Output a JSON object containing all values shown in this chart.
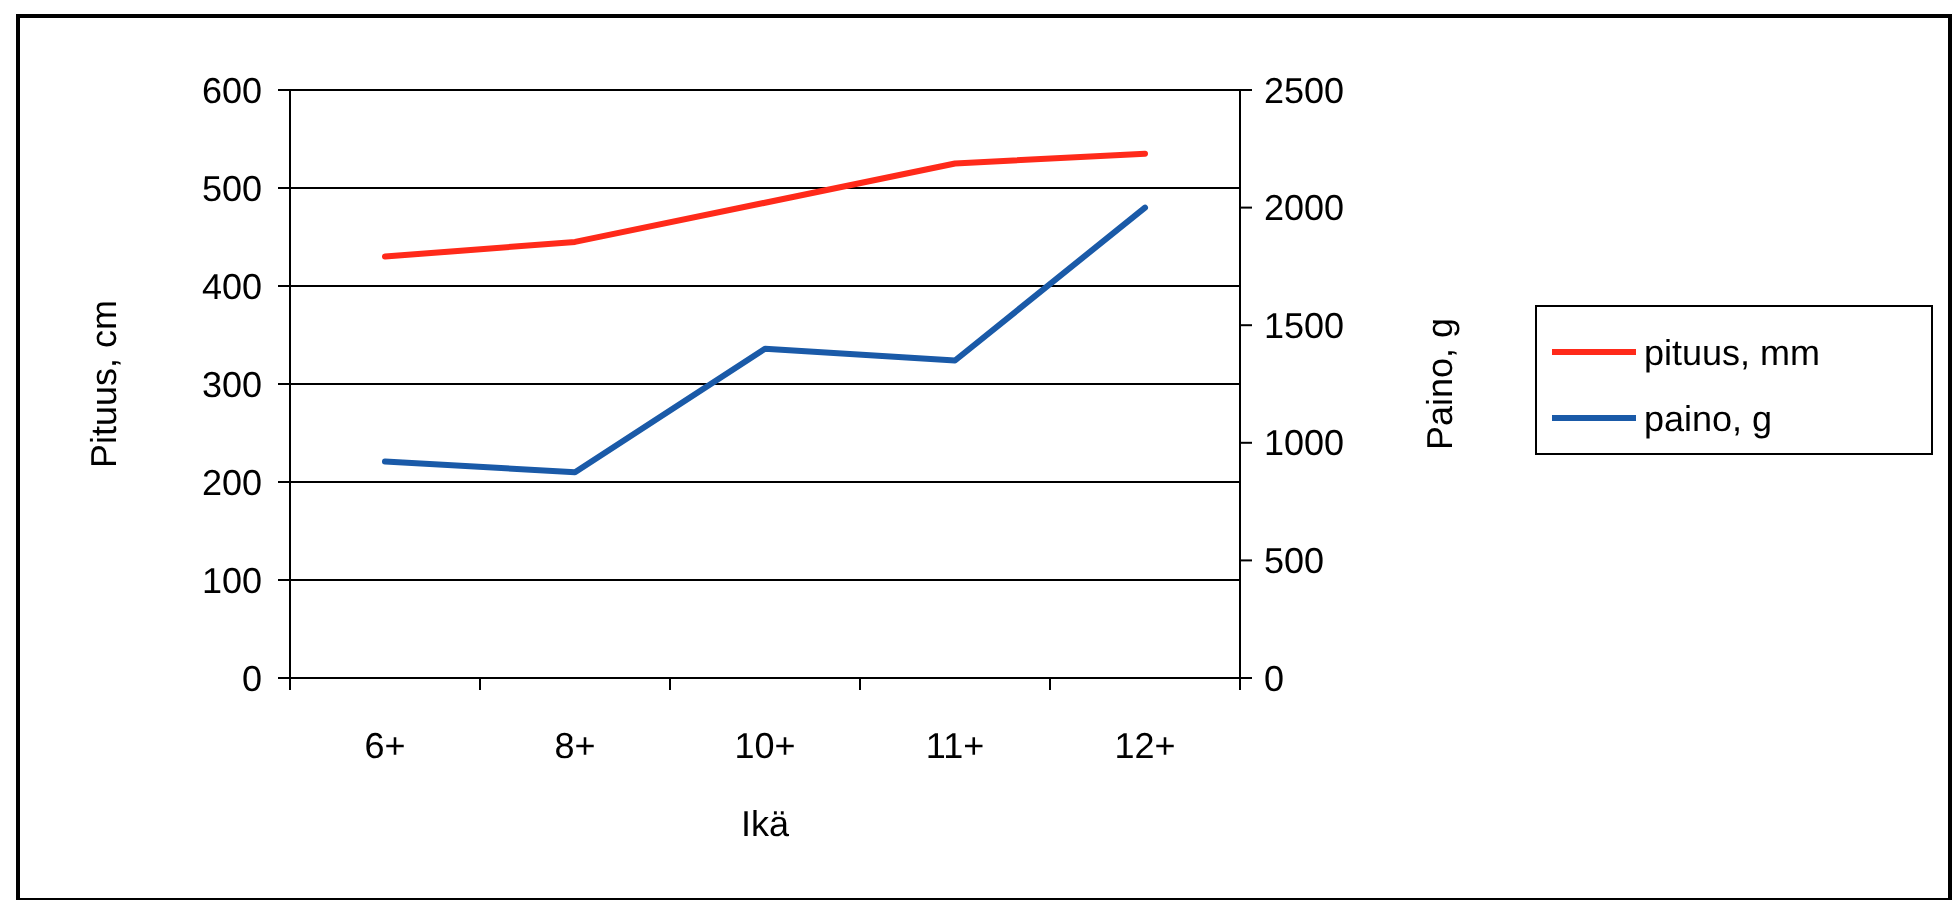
{
  "chart_data": {
    "type": "line",
    "xlabel": "Ikä",
    "ylabel": "Pituus, cm",
    "y2label": "Paino, g",
    "categories": [
      "6+",
      "8+",
      "10+",
      "11+",
      "12+"
    ],
    "series": [
      {
        "name": "pituus, mm",
        "color": "#ff2a1a",
        "values": [
          430,
          445,
          485,
          525,
          535
        ]
      },
      {
        "name": "paino, g",
        "color": "#1a5aa8",
        "values": [
          920,
          875,
          1400,
          1350,
          2000
        ],
        "axis": "y2"
      }
    ],
    "ylim": [
      0,
      600
    ],
    "yticks": [
      0,
      100,
      200,
      300,
      400,
      500,
      600
    ],
    "y2lim": [
      0,
      2500
    ],
    "y2ticks": [
      0,
      500,
      1000,
      1500,
      2000,
      2500
    ],
    "grid": "y",
    "legend": "right",
    "marker": "none",
    "line_style": "solid"
  }
}
